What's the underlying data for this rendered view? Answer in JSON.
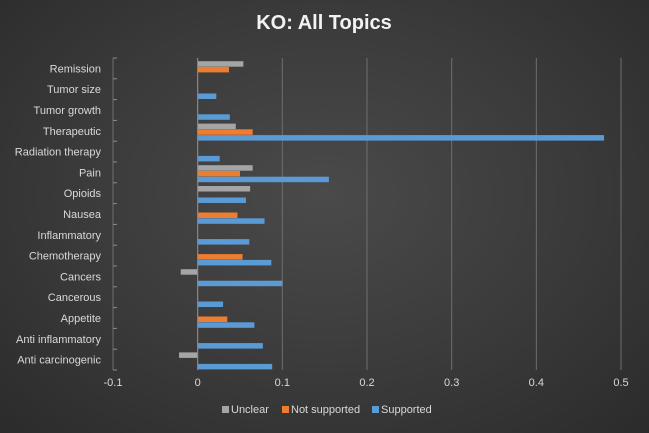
{
  "chart_data": {
    "type": "bar",
    "orientation": "horizontal",
    "title": "KO: All Topics",
    "xlabel": "",
    "ylabel": "",
    "xlim": [
      -0.1,
      0.5
    ],
    "xticks": [
      -0.1,
      0,
      0.1,
      0.2,
      0.3,
      0.4,
      0.5
    ],
    "xtick_labels": [
      "-0.1",
      "0",
      "0.1",
      "0.2",
      "0.3",
      "0.4",
      "0.5"
    ],
    "grid": "vertical",
    "legend": "bottom",
    "categories": [
      "Remission",
      "Tumor size",
      "Tumor growth",
      "Therapeutic",
      "Radiation therapy",
      "Pain",
      "Opioids",
      "Nausea",
      "Inflammatory",
      "Chemotherapy",
      "Cancers",
      "Cancerous",
      "Appetite",
      "Anti inflammatory",
      "Anti carcinogenic"
    ],
    "series": [
      {
        "name": "Unclear",
        "color": "#a5a5a5",
        "values": [
          0.054,
          0,
          0,
          0.045,
          0,
          0.065,
          0.062,
          0,
          0,
          0,
          -0.02,
          0,
          0,
          0,
          -0.022
        ]
      },
      {
        "name": "Not supported",
        "color": "#ed7d31",
        "values": [
          0.037,
          0,
          0,
          0.065,
          0,
          0.05,
          0,
          0.047,
          0,
          0.053,
          0,
          0,
          0.035,
          0,
          0
        ]
      },
      {
        "name": "Supported",
        "color": "#5b9bd5",
        "values": [
          0,
          0.022,
          0.038,
          0.48,
          0.026,
          0.155,
          0.057,
          0.079,
          0.061,
          0.087,
          0.1,
          0.03,
          0.067,
          0.077,
          0.088
        ]
      }
    ]
  }
}
